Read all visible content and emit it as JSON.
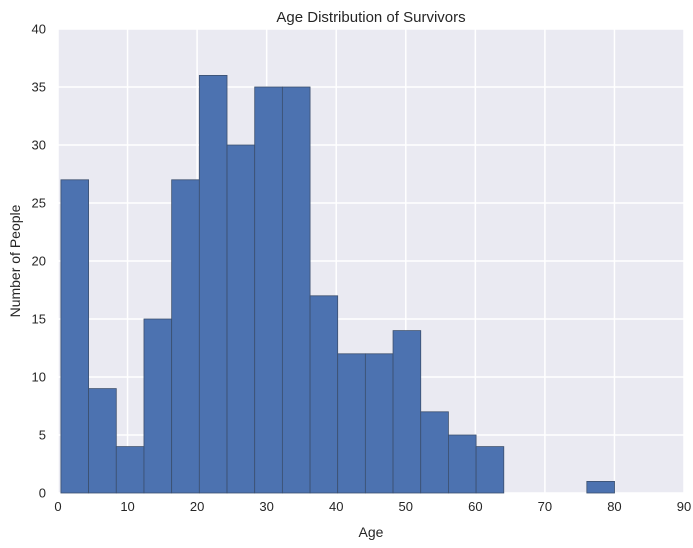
{
  "chart_data": {
    "type": "bar",
    "title": "Age Distribution of Survivors",
    "xlabel": "Age",
    "ylabel": "Number of People",
    "xlim": [
      0,
      90
    ],
    "ylim": [
      0,
      40
    ],
    "xticks": [
      0,
      10,
      20,
      30,
      40,
      50,
      60,
      70,
      80,
      90
    ],
    "yticks": [
      0,
      5,
      10,
      15,
      20,
      25,
      30,
      35,
      40
    ],
    "bin_edges": [
      0.42,
      4.4,
      8.38,
      12.36,
      16.34,
      20.32,
      24.3,
      28.28,
      32.26,
      36.24,
      40.21,
      44.19,
      48.17,
      52.15,
      56.13,
      60.11,
      64.09,
      68.07,
      72.05,
      76.03,
      80.01
    ],
    "values": [
      27,
      9,
      4,
      15,
      27,
      36,
      30,
      35,
      35,
      17,
      12,
      12,
      14,
      7,
      5,
      4,
      0,
      0,
      0,
      1
    ],
    "grid": true,
    "colors": {
      "bar": "#4c72b0",
      "bar_edge": "#3b4f6e",
      "plot_bg": "#eaeaf2",
      "grid": "#ffffff"
    }
  }
}
